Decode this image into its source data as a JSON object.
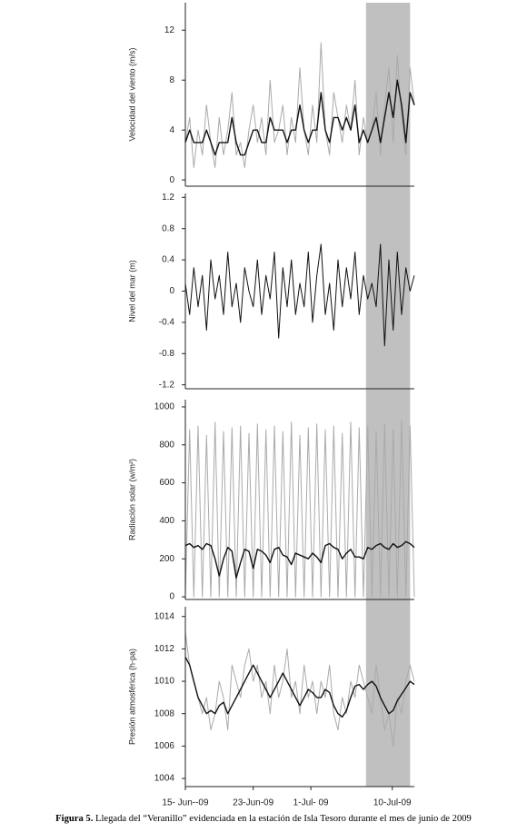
{
  "caption": {
    "label": "Figura 5.",
    "text": "Llegada del “Veranillo” evidenciada en la estación de Isla Tesoro durante el mes de junio de 2009"
  },
  "shaded_x": [
    21.3,
    26.5
  ],
  "shade_color": "#c0c0c0",
  "chart_data": [
    {
      "type": "line",
      "y_label": "Velocidad del viento (m/s)",
      "xlim": [
        0,
        27
      ],
      "ylim": [
        -0.5,
        14.2
      ],
      "yticks": [
        0,
        4,
        8,
        12
      ],
      "x": [
        0,
        0.5,
        1,
        1.5,
        2,
        2.5,
        3,
        3.5,
        4,
        4.5,
        5,
        5.5,
        6,
        6.5,
        7,
        7.5,
        8,
        8.5,
        9,
        9.5,
        10,
        10.5,
        11,
        11.5,
        12,
        12.5,
        13,
        13.5,
        14,
        14.5,
        15,
        15.5,
        16,
        16.5,
        17,
        17.5,
        18,
        18.5,
        19,
        19.5,
        20,
        20.5,
        21,
        21.5,
        22,
        22.5,
        23,
        23.5,
        24,
        24.5,
        25,
        25.5,
        26,
        26.5,
        27
      ],
      "series": [
        {
          "color": "#aaaaaa",
          "values": [
            3,
            5,
            1,
            4,
            2,
            6,
            3,
            1,
            5,
            2,
            4,
            7,
            2,
            3,
            1,
            4,
            6,
            3,
            5,
            2,
            8,
            3,
            4,
            6,
            2,
            5,
            3,
            9,
            4,
            2,
            6,
            3,
            11,
            4,
            2,
            7,
            5,
            3,
            6,
            4,
            8,
            2,
            5,
            3,
            4,
            7,
            2,
            6,
            9,
            3,
            10,
            5,
            2,
            9,
            6
          ]
        },
        {
          "color": "#111111",
          "values": [
            3,
            4,
            3,
            3,
            3,
            4,
            3,
            2,
            3,
            3,
            3,
            5,
            3,
            2,
            2,
            3,
            4,
            4,
            3,
            3,
            5,
            4,
            4,
            4,
            3,
            4,
            4,
            6,
            4,
            3,
            4,
            4,
            7,
            4,
            3,
            5,
            5,
            4,
            5,
            4,
            6,
            3,
            4,
            3,
            4,
            5,
            3,
            5,
            7,
            5,
            8,
            6,
            3,
            7,
            6
          ]
        }
      ]
    },
    {
      "type": "line",
      "y_label": "Nivel del mar  (m)",
      "xlim": [
        0,
        27
      ],
      "ylim": [
        -1.25,
        1.25
      ],
      "yticks": [
        -1.2,
        -0.8,
        -0.4,
        0,
        0.4,
        0.8,
        1.2
      ],
      "x": [
        0,
        0.5,
        1,
        1.5,
        2,
        2.5,
        3,
        3.5,
        4,
        4.5,
        5,
        5.5,
        6,
        6.5,
        7,
        7.5,
        8,
        8.5,
        9,
        9.5,
        10,
        10.5,
        11,
        11.5,
        12,
        12.5,
        13,
        13.5,
        14,
        14.5,
        15,
        15.5,
        16,
        16.5,
        17,
        17.5,
        18,
        18.5,
        19,
        19.5,
        20,
        20.5,
        21,
        21.5,
        22,
        22.5,
        23,
        23.5,
        24,
        24.5,
        25,
        25.5,
        26,
        26.5,
        27
      ],
      "series": [
        {
          "color": "#111111",
          "values": [
            0.1,
            -0.3,
            0.3,
            -0.2,
            0.2,
            -0.5,
            0.4,
            -0.1,
            0.2,
            -0.3,
            0.5,
            -0.2,
            0.1,
            -0.4,
            0.3,
            0,
            -0.2,
            0.4,
            -0.3,
            0.2,
            -0.1,
            0.5,
            -0.6,
            0.3,
            -0.2,
            0.4,
            -0.3,
            0.1,
            -0.2,
            0.5,
            -0.4,
            0.2,
            0.6,
            -0.3,
            0.1,
            -0.5,
            0.4,
            -0.2,
            0.3,
            -0.1,
            0.5,
            -0.3,
            0.2,
            -0.1,
            0.1,
            -0.2,
            0.6,
            -0.7,
            0.4,
            -0.5,
            0.5,
            -0.3,
            0.3,
            0,
            0.2
          ]
        }
      ]
    },
    {
      "type": "line",
      "y_label": "Radiación solar  (w/m²)",
      "xlim": [
        0,
        27
      ],
      "ylim": [
        -14,
        1038
      ],
      "yticks": [
        0,
        200,
        400,
        600,
        800,
        1000
      ],
      "x": [
        0,
        0.5,
        1,
        1.5,
        2,
        2.5,
        3,
        3.5,
        4,
        4.5,
        5,
        5.5,
        6,
        6.5,
        7,
        7.5,
        8,
        8.5,
        9,
        9.5,
        10,
        10.5,
        11,
        11.5,
        12,
        12.5,
        13,
        13.5,
        14,
        14.5,
        15,
        15.5,
        16,
        16.5,
        17,
        17.5,
        18,
        18.5,
        19,
        19.5,
        20,
        20.5,
        21,
        21.5,
        22,
        22.5,
        23,
        23.5,
        24,
        24.5,
        25,
        25.5,
        26,
        26.5,
        27
      ],
      "series": [
        {
          "color": "#aaaaaa",
          "values": [
            0,
            880,
            0,
            900,
            0,
            850,
            0,
            920,
            0,
            870,
            0,
            890,
            0,
            900,
            0,
            860,
            0,
            910,
            0,
            880,
            0,
            900,
            0,
            870,
            0,
            920,
            0,
            850,
            0,
            890,
            0,
            910,
            0,
            880,
            0,
            900,
            0,
            860,
            0,
            920,
            0,
            890,
            0,
            900,
            0,
            870,
            0,
            910,
            0,
            880,
            0,
            930,
            0,
            900,
            0
          ]
        },
        {
          "color": "#111111",
          "values": [
            270,
            280,
            260,
            270,
            250,
            280,
            270,
            200,
            110,
            200,
            260,
            240,
            100,
            180,
            250,
            240,
            150,
            250,
            240,
            220,
            180,
            250,
            260,
            220,
            210,
            170,
            230,
            220,
            210,
            200,
            230,
            210,
            180,
            270,
            280,
            260,
            250,
            200,
            230,
            250,
            210,
            210,
            200,
            260,
            250,
            270,
            280,
            260,
            250,
            280,
            260,
            270,
            290,
            280,
            260
          ]
        }
      ]
    },
    {
      "type": "line",
      "y_label": "Presión atmosférica (h-pa)",
      "xlim": [
        0,
        27
      ],
      "ylim": [
        1003.5,
        1014.6
      ],
      "yticks": [
        1004,
        1006,
        1008,
        1010,
        1012,
        1014
      ],
      "xticks": [
        {
          "value": 0,
          "label": "15- Jun--09"
        },
        {
          "value": 8,
          "label": "23-Jun-09"
        },
        {
          "value": 14.8,
          "label": "1-Jul- 09"
        },
        {
          "value": 24.4,
          "label": "10-Jul-09"
        }
      ],
      "x": [
        0,
        0.5,
        1,
        1.5,
        2,
        2.5,
        3,
        3.5,
        4,
        4.5,
        5,
        5.5,
        6,
        6.5,
        7,
        7.5,
        8,
        8.5,
        9,
        9.5,
        10,
        10.5,
        11,
        11.5,
        12,
        12.5,
        13,
        13.5,
        14,
        14.5,
        15,
        15.5,
        16,
        16.5,
        17,
        17.5,
        18,
        18.5,
        19,
        19.5,
        20,
        20.5,
        21,
        21.5,
        22,
        22.5,
        23,
        23.5,
        24,
        24.5,
        25,
        25.5,
        26,
        26.5,
        27
      ],
      "series": [
        {
          "color": "#aaaaaa",
          "values": [
            1013,
            1011,
            1010,
            1009,
            1008,
            1009,
            1007,
            1008,
            1010,
            1009,
            1007,
            1011,
            1010,
            1009,
            1011,
            1012,
            1010,
            1011,
            1009,
            1010,
            1008,
            1011,
            1009,
            1010,
            1012,
            1009,
            1010,
            1008,
            1011,
            1009,
            1010,
            1008,
            1010,
            1009,
            1011,
            1008,
            1007,
            1009,
            1008,
            1010,
            1009,
            1011,
            1010,
            1009,
            1008,
            1011,
            1009,
            1007,
            1008,
            1006,
            1009,
            1008,
            1010,
            1011,
            1010
          ]
        },
        {
          "color": "#111111",
          "values": [
            1011.5,
            1011,
            1010,
            1009,
            1008.5,
            1008,
            1008.2,
            1008,
            1008.5,
            1008.7,
            1008,
            1008.5,
            1009,
            1009.5,
            1010,
            1010.5,
            1011,
            1010.5,
            1010,
            1009.5,
            1009,
            1009.5,
            1010,
            1010.5,
            1010,
            1009.5,
            1009,
            1008.5,
            1009,
            1009.5,
            1009.3,
            1009,
            1009,
            1009.5,
            1009.3,
            1008.5,
            1008,
            1007.8,
            1008.2,
            1009,
            1009.7,
            1009.8,
            1009.5,
            1009.8,
            1010,
            1009.7,
            1009,
            1008.5,
            1008,
            1008.2,
            1008.8,
            1009.2,
            1009.6,
            1010,
            1009.8
          ]
        }
      ]
    }
  ]
}
